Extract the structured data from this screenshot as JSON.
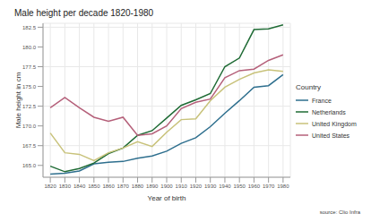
{
  "chart_data": {
    "type": "line",
    "title": "Male height per decade 1820-1980",
    "x_label": "Year of birth",
    "y_label": "Male height in cm",
    "source": "source: Clio Infra",
    "legend_title": "Country",
    "legend": "right",
    "grid": true,
    "x": [
      1820,
      1830,
      1840,
      1850,
      1860,
      1870,
      1880,
      1890,
      1900,
      1910,
      1920,
      1930,
      1940,
      1950,
      1960,
      1970,
      1980
    ],
    "xlim": [
      1815,
      1985
    ],
    "xticks": [
      1820,
      1830,
      1840,
      1850,
      1860,
      1870,
      1880,
      1890,
      1900,
      1910,
      1920,
      1930,
      1940,
      1950,
      1960,
      1970,
      1980
    ],
    "ylim": [
      163.5,
      183
    ],
    "yticks": [
      {
        "value": 165,
        "label": "165.0"
      },
      {
        "value": 167.5,
        "label": "167.5"
      },
      {
        "value": 170,
        "label": "170.0"
      },
      {
        "value": 172.5,
        "label": "172.5"
      },
      {
        "value": 175,
        "label": "175.0"
      },
      {
        "value": 177.5,
        "label": "177.5"
      },
      {
        "value": 180,
        "label": "180.0"
      },
      {
        "value": 182.5,
        "label": "182.5"
      }
    ],
    "series": [
      {
        "name": "France",
        "color": "#2e6f8e",
        "values": [
          163.9,
          164.0,
          164.3,
          165.2,
          165.4,
          165.5,
          165.9,
          166.2,
          166.8,
          167.8,
          168.5,
          169.9,
          171.6,
          173.2,
          174.9,
          175.1,
          176.5
        ]
      },
      {
        "name": "Netherlands",
        "color": "#1f6b35",
        "values": [
          164.9,
          164.2,
          164.6,
          165.3,
          166.5,
          167.2,
          168.8,
          169.4,
          171.0,
          172.6,
          173.3,
          174.1,
          177.5,
          178.6,
          182.2,
          182.3,
          182.8
        ]
      },
      {
        "name": "United Kingdom",
        "color": "#c8c27a",
        "values": [
          169.1,
          166.6,
          166.4,
          165.6,
          166.6,
          167.2,
          168.0,
          167.4,
          169.2,
          170.8,
          170.9,
          173.2,
          174.9,
          175.9,
          176.7,
          177.1,
          176.9
        ]
      },
      {
        "name": "United States",
        "color": "#b5607a",
        "values": [
          172.3,
          173.6,
          172.3,
          171.1,
          170.6,
          171.1,
          168.8,
          169.0,
          170.0,
          172.2,
          173.0,
          173.4,
          176.1,
          177.0,
          177.2,
          178.3,
          179.0
        ]
      }
    ]
  }
}
